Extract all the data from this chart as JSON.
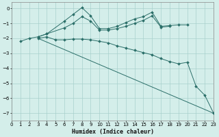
{
  "xlabel": "Humidex (Indice chaleur)",
  "bg_color": "#d4eeea",
  "grid_color": "#a8d0cc",
  "line_color": "#2a6e68",
  "xlim": [
    0,
    23
  ],
  "ylim": [
    -7.5,
    0.4
  ],
  "yticks": [
    0,
    -1,
    -2,
    -3,
    -4,
    -5,
    -6,
    -7
  ],
  "xticks": [
    0,
    1,
    2,
    3,
    4,
    5,
    6,
    7,
    8,
    9,
    10,
    11,
    12,
    13,
    14,
    15,
    16,
    17,
    18,
    19,
    20,
    21,
    22,
    23
  ],
  "series": [
    {
      "x": [
        1,
        2,
        3,
        4,
        6,
        7,
        8,
        9,
        10,
        11,
        12,
        13,
        14,
        15,
        16,
        17,
        18,
        19,
        20
      ],
      "y": [
        -2.2,
        -2.0,
        -1.9,
        -1.7,
        -0.85,
        -0.4,
        0.05,
        -0.5,
        -1.35,
        -1.35,
        -1.2,
        -0.95,
        -0.7,
        -0.55,
        -0.25,
        -1.2,
        -1.15,
        -1.1,
        -1.1
      ],
      "marker": true
    },
    {
      "x": [
        3,
        4,
        6,
        7,
        8,
        9,
        10,
        11,
        12,
        13,
        14,
        15,
        16,
        17,
        18
      ],
      "y": [
        -1.9,
        -1.7,
        -1.3,
        -1.0,
        -0.55,
        -0.85,
        -1.45,
        -1.45,
        -1.35,
        -1.2,
        -1.0,
        -0.8,
        -0.5,
        -1.25,
        -1.2
      ],
      "marker": true
    },
    {
      "x": [
        3,
        23
      ],
      "y": [
        -2.0,
        -7.0
      ],
      "marker": false
    },
    {
      "x": [
        3,
        4,
        5,
        6,
        7,
        8,
        9,
        10,
        11,
        12,
        13,
        14,
        15,
        16,
        17,
        18,
        19,
        20,
        21,
        22,
        23
      ],
      "y": [
        -2.0,
        -1.9,
        -2.1,
        -2.1,
        -2.05,
        -2.05,
        -2.1,
        -2.2,
        -2.3,
        -2.5,
        -2.65,
        -2.8,
        -2.95,
        -3.1,
        -3.35,
        -3.55,
        -3.7,
        -3.6,
        -5.2,
        -5.8,
        -7.0
      ],
      "marker": true
    }
  ]
}
